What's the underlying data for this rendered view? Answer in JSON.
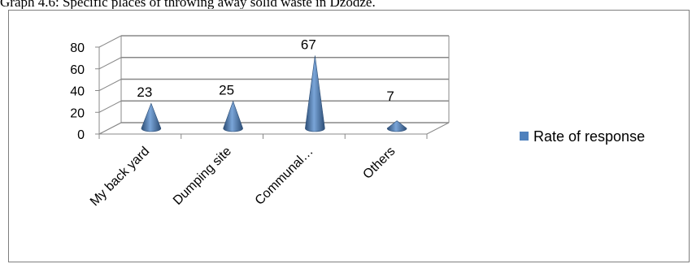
{
  "caption": "Graph 4.6: Specific places of throwing away solid waste in Dzodze.",
  "chart_data": {
    "type": "bar",
    "style": "3d-cone",
    "categories": [
      "My back yard",
      "Dumping site",
      "Communal…",
      "Others"
    ],
    "series": [
      {
        "name": "Rate of response",
        "values": [
          23,
          25,
          67,
          7
        ],
        "color": "#4f81bd"
      }
    ],
    "ylim": [
      0,
      80
    ],
    "yticks": [
      0,
      20,
      40,
      60,
      80
    ],
    "grid": true,
    "legend": "right"
  }
}
